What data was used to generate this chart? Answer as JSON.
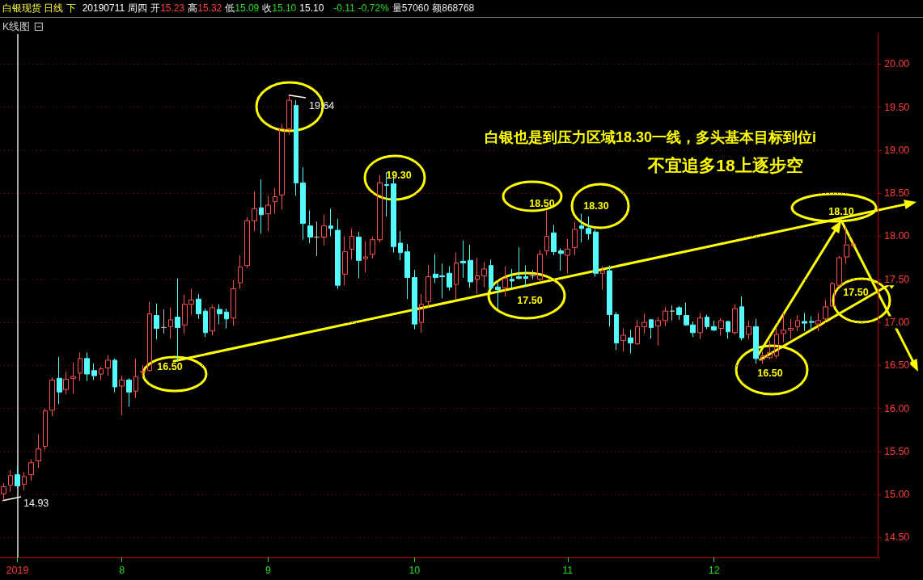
{
  "chart_data": {
    "type": "candlestick",
    "title": "白银现货 日线 下",
    "subtitle": "20190711 周四 开15.23 高15.32 低15.09 收15.10 15.10 -0.11 -0.72% 量57060 额868768",
    "annotations": [
      "K线图",
      "19.64",
      "14.93",
      "19.30",
      "18.50",
      "18.30",
      "17.50",
      "16.50",
      "18.10",
      "17.50",
      "16.50",
      "白银也是到压力区域18.30一线，多头基本目标到位i",
      "不宜追多18上逐步空"
    ],
    "categories": [
      null,
      null,
      "2019",
      null,
      null,
      null,
      null,
      null,
      null,
      null,
      null,
      null,
      null,
      null,
      null,
      null,
      null,
      "8",
      null,
      null,
      null,
      null,
      null,
      null,
      null,
      null,
      null,
      null,
      null,
      null,
      null,
      null,
      null,
      null,
      null,
      null,
      null,
      null,
      "9",
      null,
      null,
      null,
      null,
      null,
      null,
      null,
      null,
      null,
      null,
      null,
      null,
      null,
      null,
      null,
      null,
      null,
      null,
      null,
      null,
      "10",
      null,
      null,
      null,
      null,
      null,
      null,
      null,
      null,
      null,
      null,
      null,
      null,
      null,
      null,
      null,
      null,
      null,
      null,
      null,
      null,
      null,
      "11",
      null,
      null,
      null,
      null,
      null,
      null,
      null,
      null,
      null,
      null,
      null,
      null,
      null,
      null,
      null,
      null,
      null,
      null,
      null,
      null,
      "12",
      null,
      null,
      null,
      null,
      null,
      null,
      null,
      null,
      null,
      null,
      null,
      null,
      null,
      null,
      null,
      null,
      null,
      null,
      null,
      null,
      null,
      null,
      null
    ],
    "ohlc": [
      [
        15.01,
        15.13,
        14.93,
        15.09
      ],
      [
        15.11,
        15.28,
        15.03,
        15.22
      ],
      [
        15.23,
        15.32,
        15.09,
        15.1
      ],
      [
        15.12,
        15.26,
        15.05,
        15.21
      ],
      [
        15.23,
        15.41,
        15.16,
        15.37
      ],
      [
        15.39,
        15.7,
        15.31,
        15.53
      ],
      [
        15.56,
        16.0,
        15.52,
        15.97
      ],
      [
        15.98,
        16.36,
        15.91,
        16.33
      ],
      [
        16.35,
        16.6,
        16.05,
        16.19
      ],
      [
        16.22,
        16.43,
        16.16,
        16.34
      ],
      [
        16.35,
        16.53,
        16.17,
        16.37
      ],
      [
        16.41,
        16.65,
        16.32,
        16.58
      ],
      [
        16.58,
        16.65,
        16.32,
        16.4
      ],
      [
        16.44,
        16.52,
        16.33,
        16.38
      ],
      [
        16.4,
        16.48,
        16.33,
        16.46
      ],
      [
        16.47,
        16.62,
        16.38,
        16.56
      ],
      [
        16.56,
        16.58,
        16.19,
        16.25
      ],
      [
        16.26,
        16.38,
        15.92,
        16.33
      ],
      [
        16.33,
        16.35,
        16.02,
        16.19
      ],
      [
        16.2,
        16.58,
        16.12,
        16.37
      ],
      [
        16.42,
        16.5,
        16.37,
        16.43
      ],
      [
        16.44,
        17.24,
        16.43,
        17.1
      ],
      [
        17.08,
        17.22,
        16.8,
        16.93
      ],
      [
        16.94,
        17.15,
        16.87,
        16.94
      ],
      [
        16.95,
        17.17,
        16.81,
        17.03
      ],
      [
        17.06,
        17.51,
        16.56,
        16.94
      ],
      [
        16.97,
        17.32,
        16.87,
        17.21
      ],
      [
        17.21,
        17.39,
        17.09,
        17.26
      ],
      [
        17.27,
        17.33,
        17.04,
        17.1
      ],
      [
        17.13,
        17.16,
        16.83,
        16.88
      ],
      [
        16.9,
        17.2,
        16.85,
        17.17
      ],
      [
        17.15,
        17.21,
        16.98,
        17.1
      ],
      [
        17.12,
        17.16,
        16.93,
        17.04
      ],
      [
        17.05,
        17.49,
        16.96,
        17.39
      ],
      [
        17.46,
        17.78,
        17.39,
        17.64
      ],
      [
        17.66,
        18.22,
        17.63,
        18.18
      ],
      [
        18.18,
        18.52,
        18.06,
        18.32
      ],
      [
        18.33,
        18.66,
        18.03,
        18.25
      ],
      [
        18.26,
        18.47,
        18.06,
        18.36
      ],
      [
        18.4,
        18.56,
        18.26,
        18.46
      ],
      [
        18.48,
        19.3,
        18.31,
        19.25
      ],
      [
        19.25,
        19.64,
        19.18,
        19.58
      ],
      [
        19.52,
        19.58,
        18.47,
        18.62
      ],
      [
        18.62,
        18.8,
        17.96,
        18.15
      ],
      [
        18.12,
        18.3,
        17.92,
        17.99
      ],
      [
        17.99,
        18.17,
        17.77,
        17.99
      ],
      [
        17.99,
        18.25,
        17.89,
        18.12
      ],
      [
        18.12,
        18.32,
        18.0,
        18.09
      ],
      [
        18.07,
        18.2,
        17.39,
        17.43
      ],
      [
        17.56,
        18.0,
        17.43,
        17.82
      ],
      [
        17.85,
        18.09,
        17.73,
        18.0
      ],
      [
        17.99,
        18.05,
        17.51,
        17.72
      ],
      [
        17.74,
        17.94,
        17.58,
        17.76
      ],
      [
        17.79,
        17.99,
        17.74,
        17.96
      ],
      [
        17.96,
        18.71,
        17.93,
        18.62
      ],
      [
        18.6,
        18.74,
        18.23,
        18.59
      ],
      [
        18.61,
        18.7,
        17.81,
        17.88
      ],
      [
        17.92,
        18.06,
        17.72,
        17.81
      ],
      [
        17.82,
        17.91,
        17.27,
        17.52
      ],
      [
        17.52,
        17.61,
        16.92,
        16.98
      ],
      [
        17.0,
        17.33,
        16.88,
        17.21
      ],
      [
        17.24,
        17.67,
        17.18,
        17.53
      ],
      [
        17.56,
        17.79,
        17.46,
        17.52
      ],
      [
        17.54,
        17.68,
        17.28,
        17.53
      ],
      [
        17.57,
        17.65,
        17.37,
        17.41
      ],
      [
        17.44,
        17.81,
        17.26,
        17.69
      ],
      [
        17.71,
        17.95,
        17.52,
        17.69
      ],
      [
        17.72,
        17.9,
        17.4,
        17.47
      ],
      [
        17.5,
        17.75,
        17.33,
        17.54
      ],
      [
        17.54,
        17.7,
        17.41,
        17.62
      ],
      [
        17.66,
        17.73,
        17.35,
        17.4
      ],
      [
        17.41,
        17.46,
        17.16,
        17.38
      ],
      [
        17.4,
        17.65,
        17.3,
        17.51
      ],
      [
        17.5,
        17.62,
        17.4,
        17.48
      ],
      [
        17.53,
        17.87,
        17.5,
        17.51
      ],
      [
        17.53,
        17.66,
        17.41,
        17.51
      ],
      [
        17.54,
        17.61,
        17.5,
        17.54
      ],
      [
        17.5,
        17.84,
        17.47,
        17.79
      ],
      [
        17.83,
        18.3,
        17.78,
        18.0
      ],
      [
        18.04,
        18.13,
        17.78,
        17.82
      ],
      [
        17.83,
        17.86,
        17.6,
        17.8
      ],
      [
        17.78,
        17.97,
        17.57,
        17.85
      ],
      [
        17.87,
        18.17,
        17.78,
        18.08
      ],
      [
        18.12,
        18.26,
        17.93,
        18.09
      ],
      [
        18.09,
        18.23,
        17.96,
        18.03
      ],
      [
        18.05,
        18.08,
        17.53,
        17.57
      ],
      [
        17.57,
        17.65,
        17.38,
        17.6
      ],
      [
        17.6,
        17.66,
        16.95,
        17.09
      ],
      [
        17.09,
        17.12,
        16.68,
        16.76
      ],
      [
        16.79,
        16.93,
        16.66,
        16.85
      ],
      [
        16.82,
        16.91,
        16.64,
        16.76
      ],
      [
        16.75,
        17.03,
        16.74,
        16.95
      ],
      [
        16.95,
        17.1,
        16.87,
        17.0
      ],
      [
        17.03,
        17.04,
        16.81,
        16.94
      ],
      [
        16.96,
        17.06,
        16.73,
        17.02
      ],
      [
        17.02,
        17.18,
        16.96,
        17.13
      ],
      [
        17.13,
        17.2,
        17.02,
        17.13
      ],
      [
        17.17,
        17.19,
        17.03,
        17.09
      ],
      [
        17.08,
        17.23,
        16.96,
        16.97
      ],
      [
        16.97,
        17.01,
        16.83,
        16.88
      ],
      [
        16.88,
        17.11,
        16.81,
        17.05
      ],
      [
        17.06,
        17.09,
        16.92,
        16.95
      ],
      [
        16.95,
        17.02,
        16.9,
        16.91
      ],
      [
        16.93,
        17.05,
        16.85,
        17.02
      ],
      [
        17.01,
        17.02,
        16.81,
        16.89
      ],
      [
        16.88,
        17.21,
        16.86,
        17.16
      ],
      [
        17.18,
        17.3,
        16.79,
        16.82
      ],
      [
        16.86,
        17.02,
        16.8,
        16.95
      ],
      [
        16.95,
        17.04,
        16.52,
        16.58
      ],
      [
        16.57,
        16.66,
        16.52,
        16.61
      ],
      [
        16.59,
        16.79,
        16.57,
        16.65
      ],
      [
        16.61,
        16.94,
        16.58,
        16.86
      ],
      [
        16.87,
        17.11,
        16.77,
        16.91
      ],
      [
        16.91,
        17.04,
        16.8,
        16.93
      ],
      [
        16.95,
        17.08,
        16.9,
        17.02
      ],
      [
        17.01,
        17.11,
        16.9,
        16.99
      ],
      [
        17.01,
        17.07,
        16.9,
        17.0
      ],
      [
        16.98,
        17.11,
        16.9,
        17.02
      ],
      [
        17.04,
        17.26,
        17.03,
        17.18
      ],
      [
        17.19,
        17.47,
        17.18,
        17.45
      ],
      [
        17.43,
        17.77,
        17.41,
        17.75
      ],
      [
        17.76,
        18.1,
        17.68,
        17.9
      ],
      [
        17.89,
        17.93,
        17.88,
        17.91
      ],
      null,
      null,
      null
    ],
    "colors": [
      "#ff5050",
      "#ff5050",
      "#54fcfc",
      "#ff5050",
      "#ff5050",
      "#ff5050",
      "#ff5050",
      "#ff5050",
      "#54fcfc",
      "#ff5050",
      "#ff5050",
      "#ff5050",
      "#54fcfc",
      "#54fcfc",
      "#ff5050",
      "#ff5050",
      "#54fcfc",
      "#ff5050",
      "#54fcfc",
      "#ff5050",
      "#ff5050",
      "#ff5050",
      "#54fcfc",
      "#c0c0c0",
      "#ff5050",
      "#54fcfc",
      "#ff5050",
      "#ff5050",
      "#54fcfc",
      "#54fcfc",
      "#ff5050",
      "#54fcfc",
      "#54fcfc",
      "#ff5050",
      "#ff5050",
      "#ff5050",
      "#ff5050",
      "#54fcfc",
      "#ff5050",
      "#ff5050",
      "#ff5050",
      "#ff5050",
      "#54fcfc",
      "#54fcfc",
      "#54fcfc",
      "#c0c0c0",
      "#ff5050",
      "#54fcfc",
      "#54fcfc",
      "#ff5050",
      "#ff5050",
      "#54fcfc",
      "#ff5050",
      "#ff5050",
      "#ff5050",
      "#54fcfc",
      "#54fcfc",
      "#54fcfc",
      "#54fcfc",
      "#54fcfc",
      "#ff5050",
      "#ff5050",
      "#54fcfc",
      "#54fcfc",
      "#54fcfc",
      "#ff5050",
      "#54fcfc",
      "#54fcfc",
      "#ff5050",
      "#ff5050",
      "#54fcfc",
      "#54fcfc",
      "#ff5050",
      "#54fcfc",
      "#54fcfc",
      "#54fcfc",
      "#c0c0c0",
      "#ff5050",
      "#ff5050",
      "#54fcfc",
      "#54fcfc",
      "#ff5050",
      "#ff5050",
      "#54fcfc",
      "#54fcfc",
      "#54fcfc",
      "#ff5050",
      "#54fcfc",
      "#54fcfc",
      "#ff5050",
      "#54fcfc",
      "#ff5050",
      "#ff5050",
      "#54fcfc",
      "#ff5050",
      "#ff5050",
      "#c0c0c0",
      "#54fcfc",
      "#54fcfc",
      "#54fcfc",
      "#ff5050",
      "#54fcfc",
      "#54fcfc",
      "#ff5050",
      "#54fcfc",
      "#ff5050",
      "#54fcfc",
      "#ff5050",
      "#54fcfc",
      "#ff5050",
      "#ff5050",
      "#ff5050",
      "#ff5050",
      "#ff5050",
      "#ff5050",
      "#54fcfc",
      "#54fcfc",
      "#ff5050",
      "#ff5050",
      "#ff5050",
      "#ff5050",
      "#ff5050",
      "#ff5050",
      null,
      null,
      null
    ],
    "ylim": [
      14.27,
      20.35
    ],
    "yticks": [
      {
        "value": 14.5,
        "label": "14.50"
      },
      {
        "value": 15,
        "label": "15.00"
      },
      {
        "value": 15.5,
        "label": "15.50"
      },
      {
        "value": 16,
        "label": "16.00"
      },
      {
        "value": 16.5,
        "label": "16.50"
      },
      {
        "value": 17,
        "label": "17.00"
      },
      {
        "value": 17.5,
        "label": "17.50"
      },
      {
        "value": 18,
        "label": "18.00"
      },
      {
        "value": 18.5,
        "label": "18.50"
      },
      {
        "value": 19,
        "label": "19.00"
      },
      {
        "value": 19.5,
        "label": "19.50"
      },
      {
        "value": 20,
        "label": "20.00"
      }
    ],
    "grid": "y",
    "ref_lines": [
      {
        "axis": "x",
        "value": "2019",
        "color": "#e0e0e0"
      }
    ]
  }
}
